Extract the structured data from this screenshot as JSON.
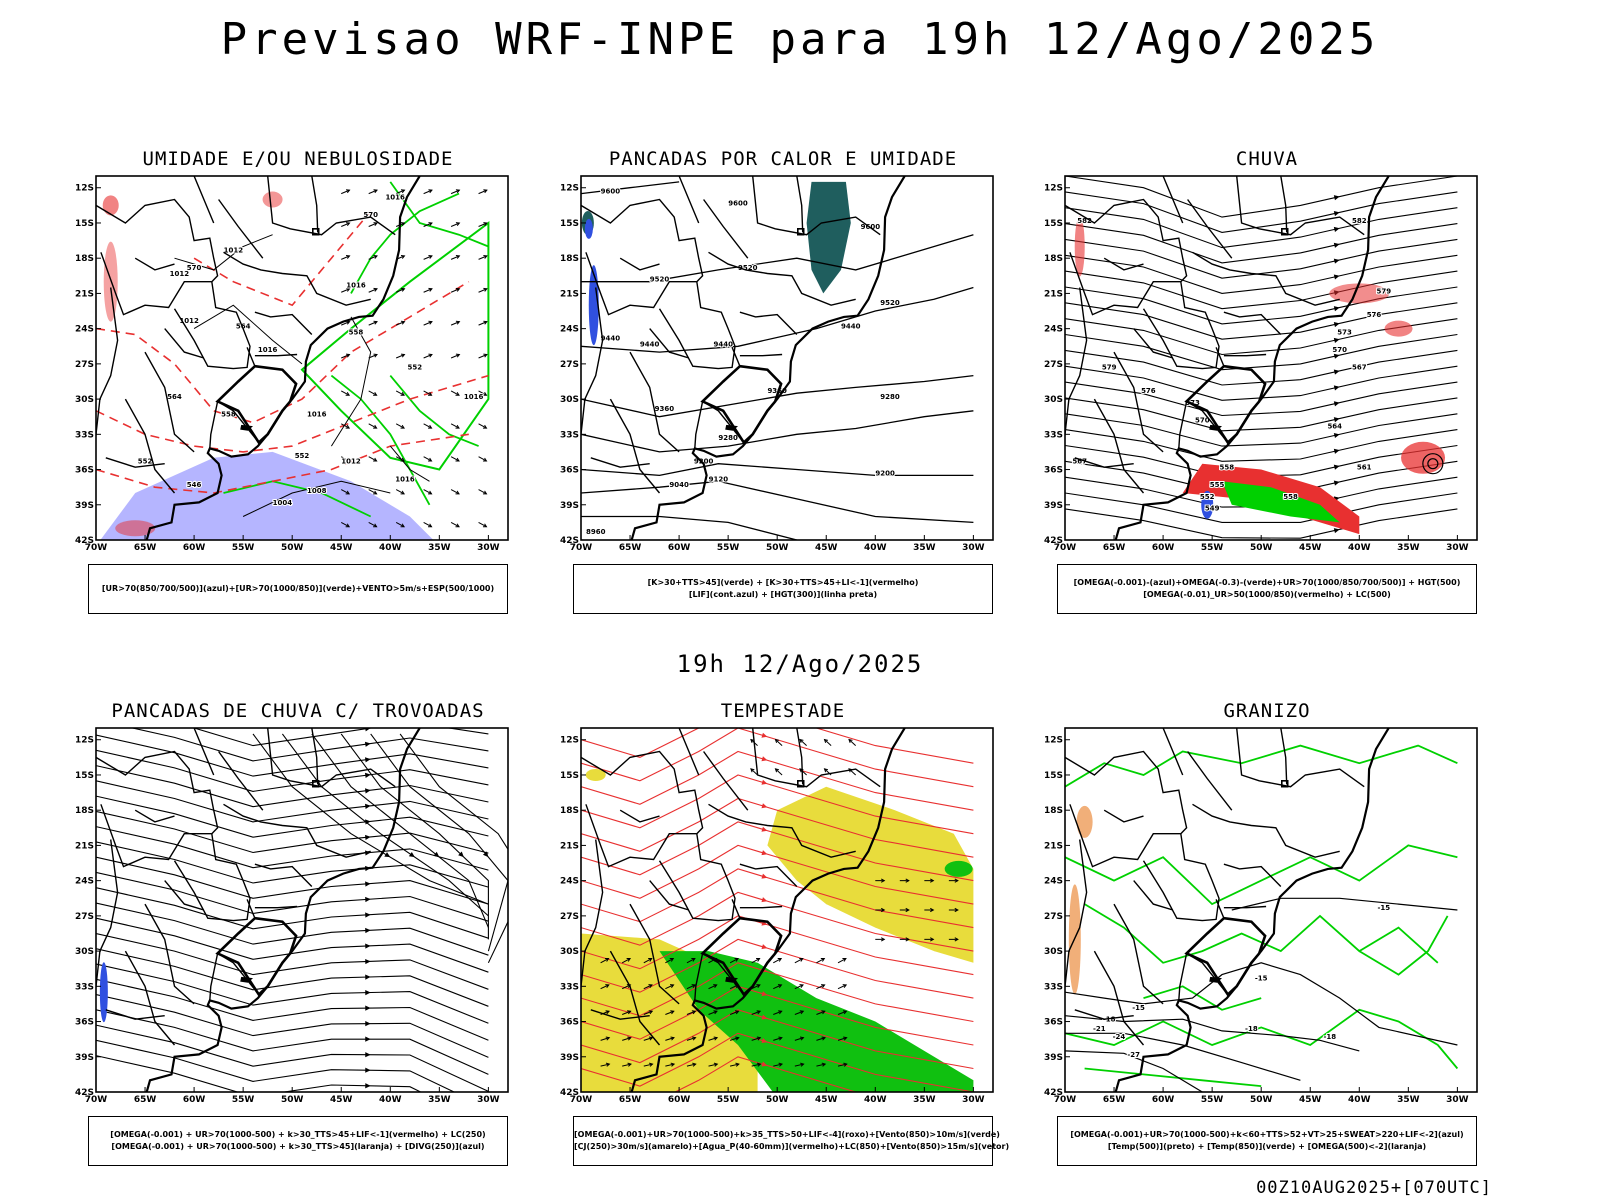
{
  "main_title": "Previsao WRF-INPE  para 19h 12/Ago/2025",
  "mid_title": "19h 12/Ago/2025",
  "footer": "00Z10AUG2025+[070UTC]",
  "colors": {
    "frame": "#000000",
    "umidade_media": "#00d000",
    "umidade_alta": "#7878ff",
    "espessura": "#e83030",
    "pancada_verde": "#1f5e5e",
    "lif_azul": "#3050e0",
    "tempestade_amarelo": "#e8dc3c",
    "tempestade_verde": "#10c010",
    "granizo_laranja": "#e87a20"
  },
  "chart_data": [
    {
      "type": "contour-map",
      "title": "UMIDADE E/OU NEBULOSIDADE",
      "x_ticks": [
        "70W",
        "65W",
        "60W",
        "55W",
        "50W",
        "45W",
        "40W",
        "35W",
        "30W"
      ],
      "y_ticks": [
        "12S",
        "15S",
        "18S",
        "21S",
        "24S",
        "27S",
        "30S",
        "33S",
        "36S",
        "39S",
        "42S"
      ],
      "contour_labels": [
        {
          "text": "1012",
          "lon": -61.5,
          "lat": -19.5
        },
        {
          "text": "1012",
          "lon": -56,
          "lat": -17.5
        },
        {
          "text": "1012",
          "lon": -60.5,
          "lat": -23.5
        },
        {
          "text": "1016",
          "lon": -52.5,
          "lat": -26
        },
        {
          "text": "1016",
          "lon": -43.5,
          "lat": -20.5
        },
        {
          "text": "1016",
          "lon": -39.5,
          "lat": -13
        },
        {
          "text": "1016",
          "lon": -47.5,
          "lat": -31.5
        },
        {
          "text": "1012",
          "lon": -44,
          "lat": -35.5
        },
        {
          "text": "1008",
          "lon": -47.5,
          "lat": -38
        },
        {
          "text": "1004",
          "lon": -51,
          "lat": -39
        },
        {
          "text": "1016",
          "lon": -38.5,
          "lat": -37
        },
        {
          "text": "1016",
          "lon": -31.5,
          "lat": -30
        },
        {
          "text": "570",
          "lon": -60,
          "lat": -19
        },
        {
          "text": "570",
          "lon": -42,
          "lat": -14.5
        },
        {
          "text": "564",
          "lon": -55,
          "lat": -24
        },
        {
          "text": "558",
          "lon": -43.5,
          "lat": -24.5
        },
        {
          "text": "552",
          "lon": -37.5,
          "lat": -27.5
        },
        {
          "text": "564",
          "lon": -62,
          "lat": -30
        },
        {
          "text": "558",
          "lon": -56.5,
          "lat": -31.5
        },
        {
          "text": "552",
          "lon": -65,
          "lat": -35.5
        },
        {
          "text": "546",
          "lon": -60,
          "lat": -37.5
        },
        {
          "text": "552",
          "lon": -49,
          "lat": -35
        }
      ],
      "legend_lines": [
        "[UR>70(850/700/500)](azul)+[UR>70(1000/850)](verde)+VENTO>5m/s+ESP(500/1000)"
      ]
    },
    {
      "type": "contour-map",
      "title": "PANCADAS POR CALOR E UMIDADE",
      "x_ticks": [
        "70W",
        "65W",
        "60W",
        "55W",
        "50W",
        "45W",
        "40W",
        "35W",
        "30W"
      ],
      "y_ticks": [
        "12S",
        "15S",
        "18S",
        "21S",
        "24S",
        "27S",
        "30S",
        "33S",
        "36S",
        "39S",
        "42S"
      ],
      "contour_labels": [
        {
          "text": "9600",
          "lon": -67,
          "lat": -12.5
        },
        {
          "text": "9600",
          "lon": -54,
          "lat": -13.5
        },
        {
          "text": "9600",
          "lon": -40.5,
          "lat": -15.5
        },
        {
          "text": "9520",
          "lon": -62,
          "lat": -20
        },
        {
          "text": "9520",
          "lon": -53,
          "lat": -19
        },
        {
          "text": "9520",
          "lon": -38.5,
          "lat": -22
        },
        {
          "text": "9440",
          "lon": -67,
          "lat": -25
        },
        {
          "text": "9440",
          "lon": -63,
          "lat": -25.5
        },
        {
          "text": "9440",
          "lon": -55.5,
          "lat": -25.5
        },
        {
          "text": "9440",
          "lon": -42.5,
          "lat": -24
        },
        {
          "text": "9360",
          "lon": -61.5,
          "lat": -31
        },
        {
          "text": "9360",
          "lon": -50,
          "lat": -29.5
        },
        {
          "text": "9280",
          "lon": -55,
          "lat": -33.5
        },
        {
          "text": "9280",
          "lon": -38.5,
          "lat": -30
        },
        {
          "text": "9200",
          "lon": -57.5,
          "lat": -35.5
        },
        {
          "text": "9200",
          "lon": -39,
          "lat": -36.5
        },
        {
          "text": "9120",
          "lon": -56,
          "lat": -37
        },
        {
          "text": "9040",
          "lon": -60,
          "lat": -37.5
        },
        {
          "text": "8960",
          "lon": -68.5,
          "lat": -41.5
        }
      ],
      "legend_lines": [
        "[K>30+TTS>45](verde) + [K>30+TTS>45+LI<-1](vermelho)",
        "[LIF](cont.azul) + [HGT(300)](linha preta)"
      ]
    },
    {
      "type": "contour-map",
      "title": "CHUVA",
      "x_ticks": [
        "70W",
        "65W",
        "60W",
        "55W",
        "50W",
        "45W",
        "40W",
        "35W",
        "30W"
      ],
      "y_ticks": [
        "12S",
        "15S",
        "18S",
        "21S",
        "24S",
        "27S",
        "30S",
        "33S",
        "36S",
        "39S",
        "42S"
      ],
      "contour_labels": [
        {
          "text": "582",
          "lon": -68,
          "lat": -15
        },
        {
          "text": "582",
          "lon": -40,
          "lat": -15
        },
        {
          "text": "579",
          "lon": -65.5,
          "lat": -27.5
        },
        {
          "text": "579",
          "lon": -37.5,
          "lat": -21
        },
        {
          "text": "576",
          "lon": -61.5,
          "lat": -29.5
        },
        {
          "text": "576",
          "lon": -38.5,
          "lat": -23
        },
        {
          "text": "573",
          "lon": -57,
          "lat": -30.5
        },
        {
          "text": "573",
          "lon": -41.5,
          "lat": -24.5
        },
        {
          "text": "570",
          "lon": -56,
          "lat": -32
        },
        {
          "text": "570",
          "lon": -42,
          "lat": -26
        },
        {
          "text": "567",
          "lon": -40,
          "lat": -27.5
        },
        {
          "text": "564",
          "lon": -42.5,
          "lat": -32.5
        },
        {
          "text": "561",
          "lon": -39.5,
          "lat": -36
        },
        {
          "text": "558",
          "lon": -53.5,
          "lat": -36
        },
        {
          "text": "558",
          "lon": -47,
          "lat": -38.5
        },
        {
          "text": "555",
          "lon": -54.5,
          "lat": -37.5
        },
        {
          "text": "552",
          "lon": -55.5,
          "lat": -38.5
        },
        {
          "text": "549",
          "lon": -55,
          "lat": -39.5
        },
        {
          "text": "567",
          "lon": -68.5,
          "lat": -35.5
        }
      ],
      "legend_lines": [
        "[OMEGA(-0.001)-(azul)+OMEGA(-0.3)-(verde)+UR>70(1000/850/700/500)] + HGT(500)",
        "[OMEGA(-0.01)_UR>50(1000/850)(vermelho) + LC(500)"
      ]
    },
    {
      "type": "contour-map",
      "title": "PANCADAS DE CHUVA C/ TROVOADAS",
      "x_ticks": [
        "70W",
        "65W",
        "60W",
        "55W",
        "50W",
        "45W",
        "40W",
        "35W",
        "30W"
      ],
      "y_ticks": [
        "12S",
        "15S",
        "18S",
        "21S",
        "24S",
        "27S",
        "30S",
        "33S",
        "36S",
        "39S",
        "42S"
      ],
      "contour_labels": [],
      "legend_lines": [
        "[OMEGA(-0.001) + UR>70(1000-500) + k>30_TTS>45+LIF<-1](vermelho) + LC(250)",
        "[OMEGA(-0.001) + UR>70(1000-500) + k>30_TTS>45](laranja) + [DIVG(250)](azul)"
      ]
    },
    {
      "type": "contour-map",
      "title": "TEMPESTADE",
      "x_ticks": [
        "70W",
        "65W",
        "60W",
        "55W",
        "50W",
        "45W",
        "40W",
        "35W",
        "30W"
      ],
      "y_ticks": [
        "12S",
        "15S",
        "18S",
        "21S",
        "24S",
        "27S",
        "30S",
        "33S",
        "36S",
        "39S",
        "42S"
      ],
      "contour_labels": [],
      "legend_lines": [
        "[OMEGA(-0.001)+UR>70(1000-500)+k>35_TTS>50+LIF<-4](roxo)+[Vento(850)>10m/s](verde)",
        "[CJ(250)>30m/s](amarelo)+[Agua_P(40-60mm)](vermelho)+LC(850)+[Vento(850)>15m/s](vetor)"
      ]
    },
    {
      "type": "contour-map",
      "title": "GRANIZO",
      "x_ticks": [
        "70W",
        "65W",
        "60W",
        "55W",
        "50W",
        "45W",
        "40W",
        "35W",
        "30W"
      ],
      "y_ticks": [
        "12S",
        "15S",
        "18S",
        "21S",
        "24S",
        "27S",
        "30S",
        "33S",
        "36S",
        "39S",
        "42S"
      ],
      "contour_labels": [
        {
          "text": "-15",
          "lon": -37.5,
          "lat": -26.5
        },
        {
          "text": "-15",
          "lon": -50,
          "lat": -32.5
        },
        {
          "text": "-15",
          "lon": -62.5,
          "lat": -35
        },
        {
          "text": "-18",
          "lon": -65.5,
          "lat": -36
        },
        {
          "text": "-21",
          "lon": -66.5,
          "lat": -36.8
        },
        {
          "text": "-24",
          "lon": -64.5,
          "lat": -37.5
        },
        {
          "text": "-27",
          "lon": -63,
          "lat": -39
        },
        {
          "text": "-18",
          "lon": -51,
          "lat": -36.8
        },
        {
          "text": "-18",
          "lon": -43,
          "lat": -37.5
        }
      ],
      "legend_lines": [
        "[OMEGA(-0.001)+UR>70(1000-500)+k<60+TTS>52+VT>25+SWEAT>220+LIF<-2](azul)",
        "[Temp(500)](preto) + [Temp(850)](verde) + [OMEGA(500)<-2](laranja)"
      ]
    }
  ]
}
